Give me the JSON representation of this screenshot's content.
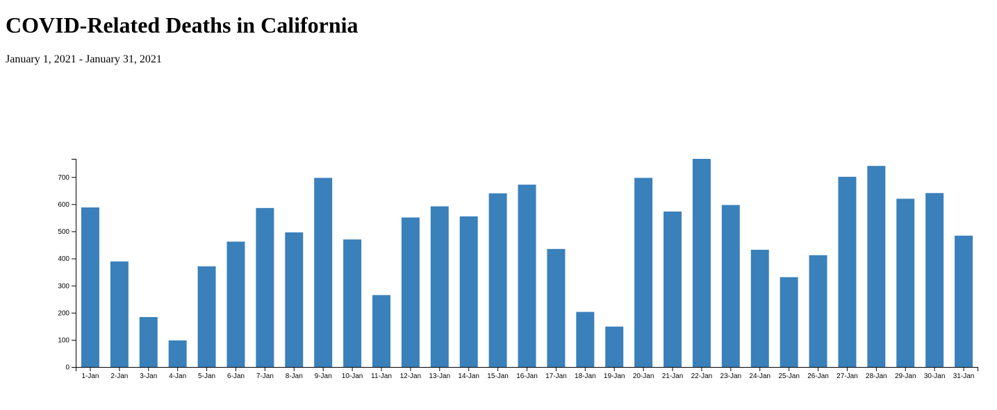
{
  "page": {
    "title": "COVID-Related Deaths in California",
    "subtitle": "January 1, 2021 - January 31, 2021"
  },
  "chart_data": {
    "type": "bar",
    "title": "",
    "xlabel": "",
    "ylabel": "",
    "categories": [
      "1-Jan",
      "2-Jan",
      "3-Jan",
      "4-Jan",
      "5-Jan",
      "6-Jan",
      "7-Jan",
      "8-Jan",
      "9-Jan",
      "10-Jan",
      "11-Jan",
      "12-Jan",
      "13-Jan",
      "14-Jan",
      "15-Jan",
      "16-Jan",
      "17-Jan",
      "18-Jan",
      "19-Jan",
      "20-Jan",
      "21-Jan",
      "22-Jan",
      "23-Jan",
      "24-Jan",
      "25-Jan",
      "26-Jan",
      "27-Jan",
      "28-Jan",
      "29-Jan",
      "30-Jan",
      "31-Jan"
    ],
    "values": [
      588,
      389,
      184,
      98,
      371,
      462,
      586,
      496,
      697,
      470,
      265,
      551,
      592,
      555,
      640,
      672,
      435,
      203,
      149,
      697,
      573,
      767,
      597,
      432,
      331,
      412,
      701,
      741,
      620,
      641,
      484
    ],
    "ylim": [
      0,
      767
    ],
    "yticks": [
      0,
      100,
      200,
      300,
      400,
      500,
      600,
      700
    ],
    "bar_color": "#3a80bb",
    "grid": false,
    "legend": "none"
  }
}
